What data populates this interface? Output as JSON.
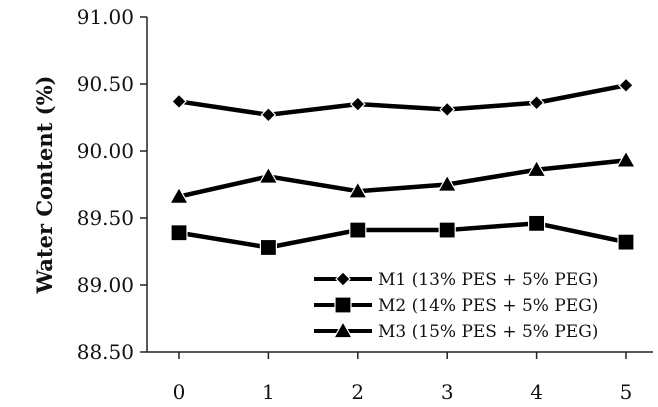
{
  "chart_data": {
    "type": "line",
    "title": "",
    "xlabel": "",
    "ylabel": "Water Content (%)",
    "categories": [
      "0",
      "1",
      "2",
      "3",
      "4",
      "5"
    ],
    "ylim": [
      88.5,
      91.0
    ],
    "yticks": [
      "88.50",
      "89.00",
      "89.50",
      "90.00",
      "90.50",
      "91.00"
    ],
    "grid": false,
    "legend_position": "bottom-right",
    "series": [
      {
        "name": "M1 (13% PES + 5% PEG)",
        "marker": "diamond",
        "color": "#000000",
        "values": [
          90.37,
          90.27,
          90.35,
          90.31,
          90.36,
          90.49
        ]
      },
      {
        "name": "M2 (14% PES + 5% PEG)",
        "marker": "square",
        "color": "#000000",
        "values": [
          89.39,
          89.28,
          89.41,
          89.41,
          89.46,
          89.32
        ]
      },
      {
        "name": "M3 (15% PES + 5% PEG)",
        "marker": "triangle",
        "color": "#000000",
        "values": [
          89.66,
          89.81,
          89.7,
          89.75,
          89.86,
          89.93
        ]
      }
    ]
  }
}
